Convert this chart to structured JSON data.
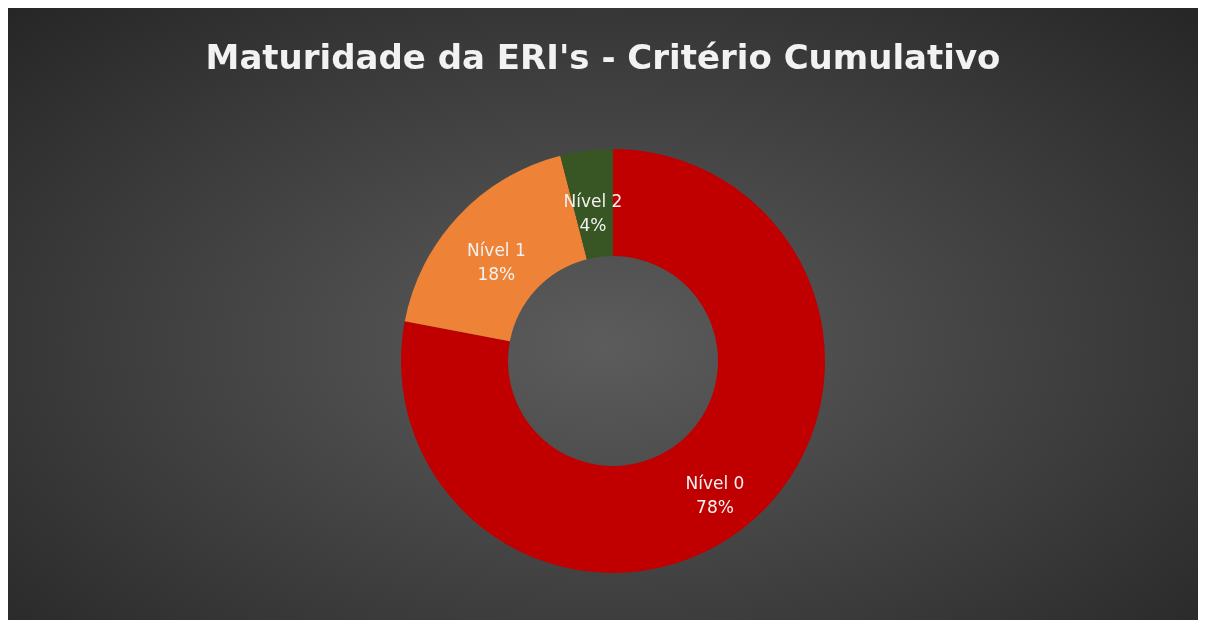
{
  "chart_data": {
    "type": "donut",
    "title": "Maturidade da ERI's - Critério Cumulativo",
    "categories": [
      "Nível 0",
      "Nível 1",
      "Nível 2"
    ],
    "values": [
      78,
      18,
      4
    ],
    "value_labels": [
      "78%",
      "18%",
      "4%"
    ],
    "colors": [
      "#c00000",
      "#ee8236",
      "#375623"
    ],
    "legend": false
  }
}
